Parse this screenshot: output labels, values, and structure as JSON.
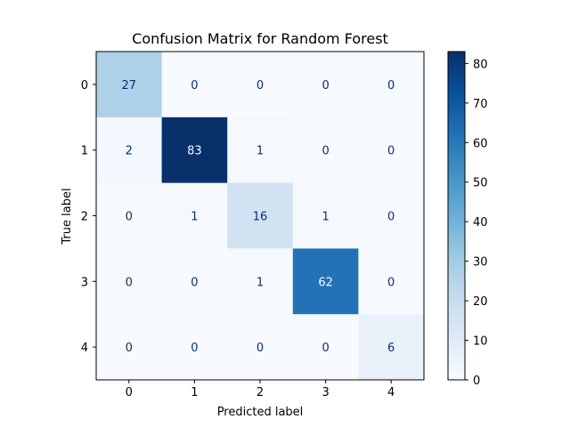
{
  "chart_data": {
    "type": "heatmap",
    "title": "Confusion Matrix for Random Forest",
    "xlabel": "Predicted label",
    "ylabel": "True label",
    "x_categories": [
      "0",
      "1",
      "2",
      "3",
      "4"
    ],
    "y_categories": [
      "0",
      "1",
      "2",
      "3",
      "4"
    ],
    "values": [
      [
        27,
        0,
        0,
        0,
        0
      ],
      [
        2,
        83,
        1,
        0,
        0
      ],
      [
        0,
        1,
        16,
        1,
        0
      ],
      [
        0,
        0,
        1,
        62,
        0
      ],
      [
        0,
        0,
        0,
        0,
        6
      ]
    ],
    "colormap": "Blues",
    "vmin": 0,
    "vmax": 83,
    "colorbar_ticks": [
      0,
      10,
      20,
      30,
      40,
      50,
      60,
      70,
      80
    ],
    "colorbar_tick_labels": [
      "0",
      "10",
      "20",
      "30",
      "40",
      "50",
      "60",
      "70",
      "80"
    ],
    "colors": {
      "low": "#f7fbff",
      "high": "#08306b",
      "text_dark": "#08306b",
      "text_light": "#f7fbff"
    }
  }
}
